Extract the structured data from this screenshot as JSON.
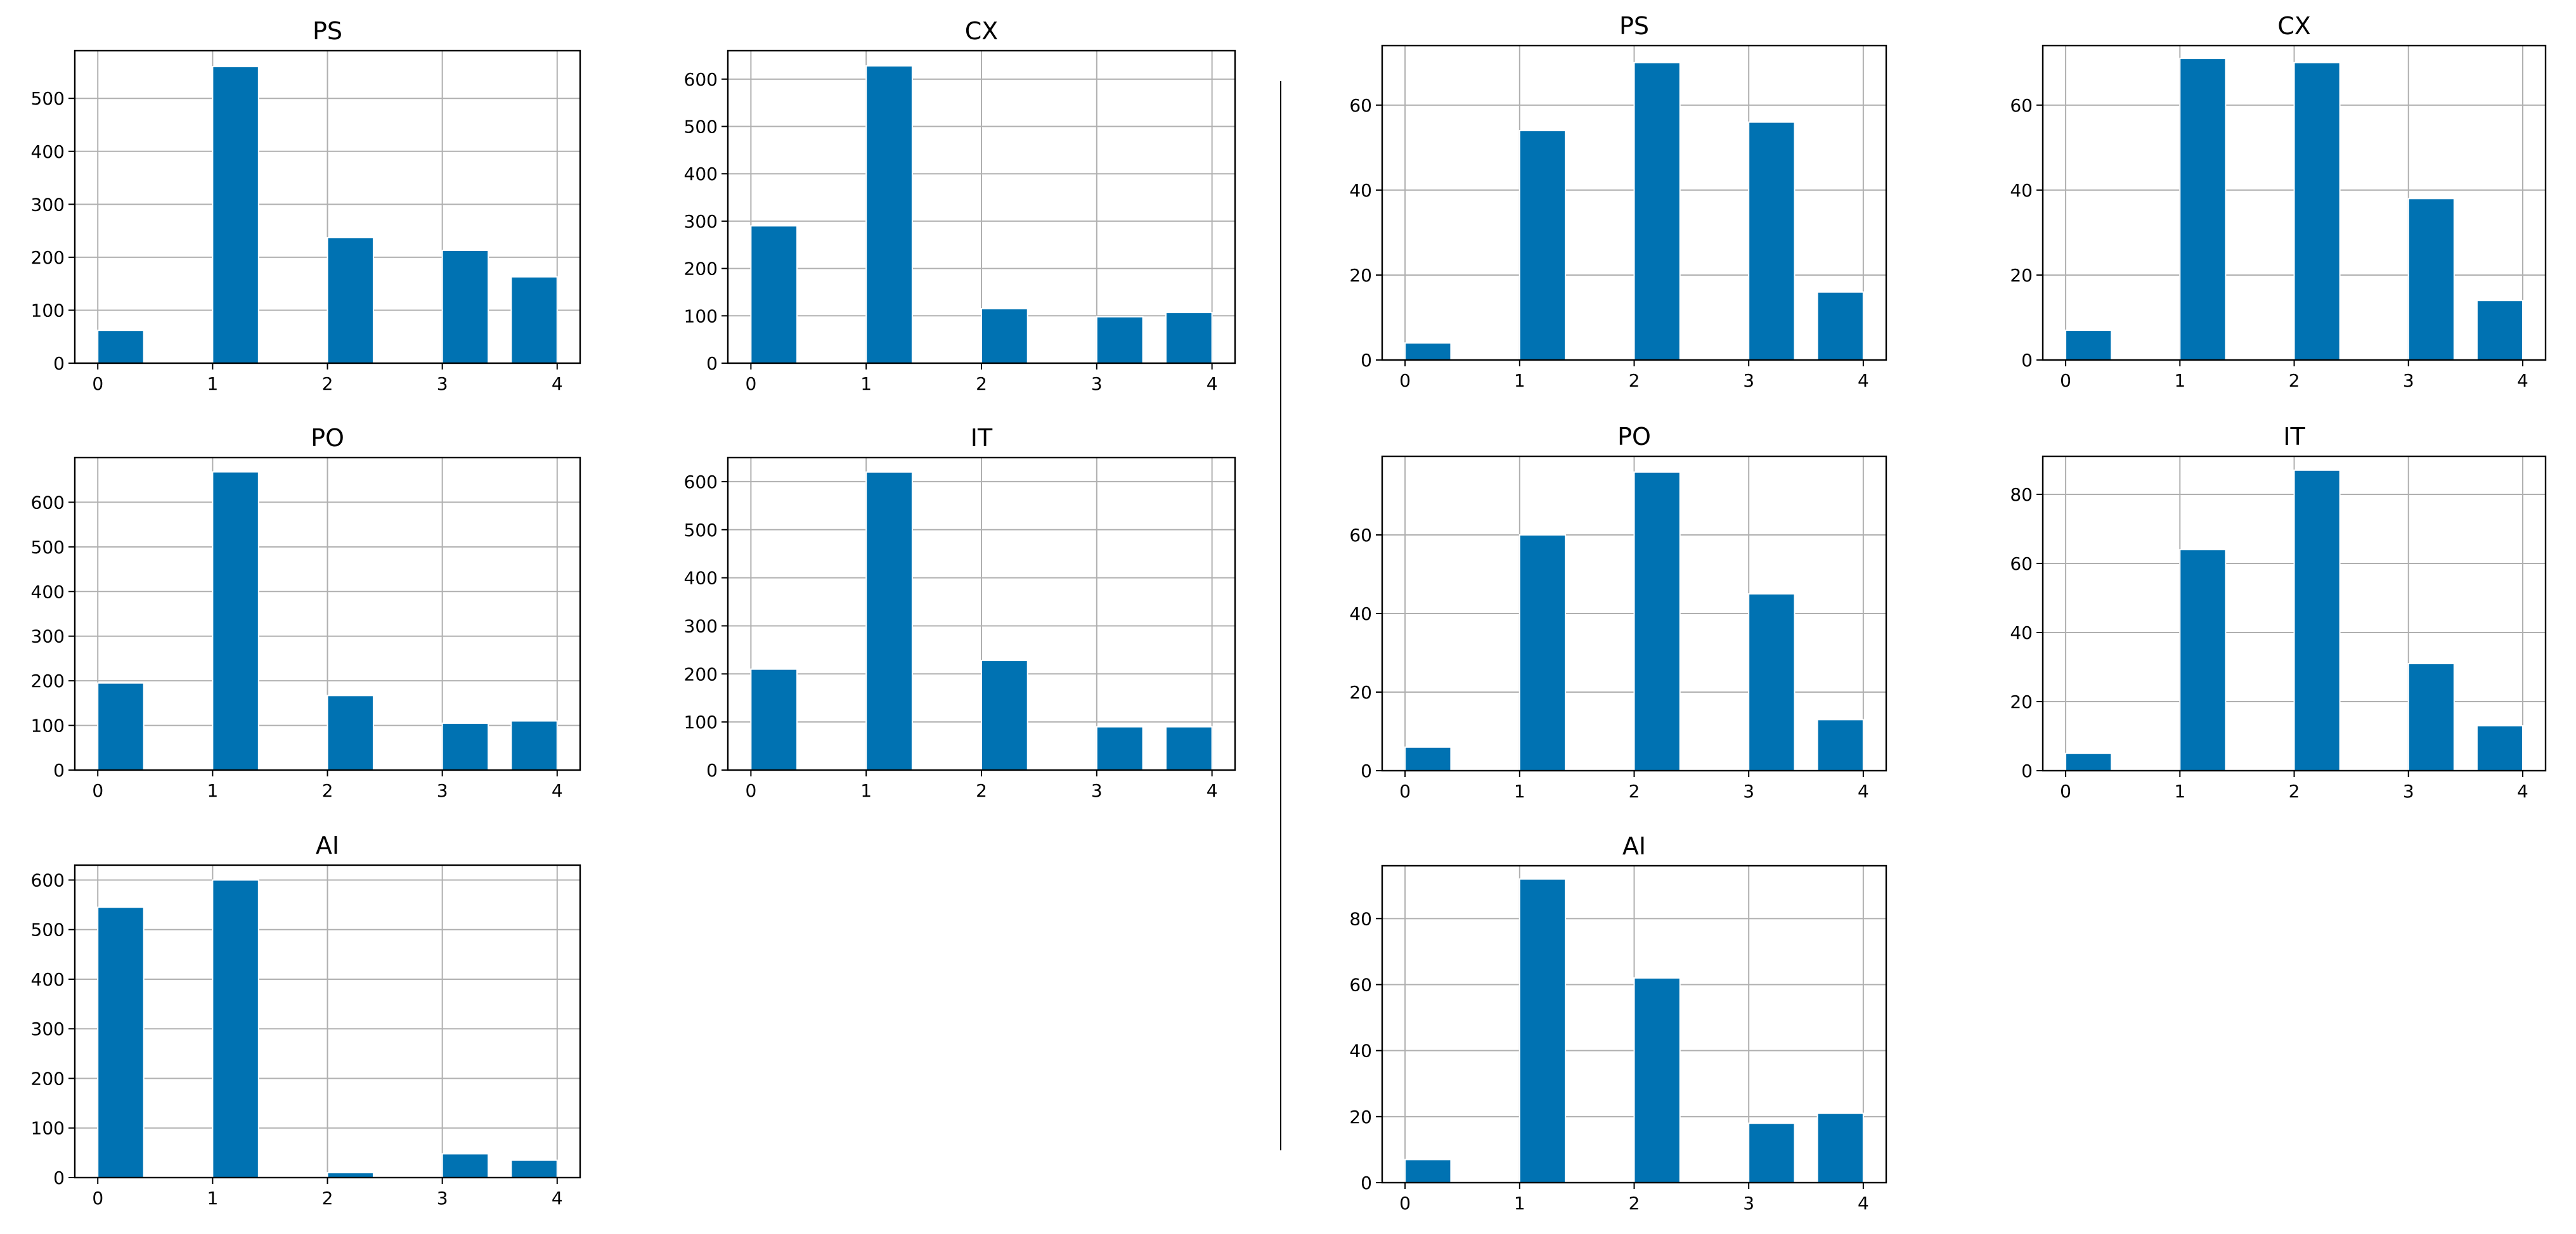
{
  "style": {
    "bar_color": "#0072b2",
    "grid_color": "#b0b0b0",
    "background": "#ffffff"
  },
  "chart_data": [
    {
      "type": "bar",
      "group": "left",
      "title": "PS",
      "categories": [
        "0",
        "1",
        "2",
        "3",
        "4"
      ],
      "values": [
        62,
        560,
        237,
        213,
        163
      ],
      "ylim": [
        0,
        590
      ],
      "yticks": [
        0,
        100,
        200,
        300,
        400,
        500
      ],
      "grid": true
    },
    {
      "type": "bar",
      "group": "left",
      "title": "CX",
      "categories": [
        "0",
        "1",
        "2",
        "3",
        "4"
      ],
      "values": [
        290,
        628,
        115,
        98,
        107
      ],
      "ylim": [
        0,
        660
      ],
      "yticks": [
        0,
        100,
        200,
        300,
        400,
        500,
        600
      ],
      "grid": true
    },
    {
      "type": "bar",
      "group": "left",
      "title": "PO",
      "categories": [
        "0",
        "1",
        "2",
        "3",
        "4"
      ],
      "values": [
        195,
        668,
        167,
        105,
        110
      ],
      "ylim": [
        0,
        700
      ],
      "yticks": [
        0,
        100,
        200,
        300,
        400,
        500,
        600
      ],
      "grid": true
    },
    {
      "type": "bar",
      "group": "left",
      "title": "IT",
      "categories": [
        "0",
        "1",
        "2",
        "3",
        "4"
      ],
      "values": [
        210,
        620,
        228,
        90,
        90
      ],
      "ylim": [
        0,
        650
      ],
      "yticks": [
        0,
        100,
        200,
        300,
        400,
        500,
        600
      ],
      "grid": true
    },
    {
      "type": "bar",
      "group": "left",
      "title": "AI",
      "categories": [
        "0",
        "1",
        "2",
        "3",
        "4"
      ],
      "values": [
        545,
        600,
        10,
        48,
        35
      ],
      "ylim": [
        0,
        630
      ],
      "yticks": [
        0,
        100,
        200,
        300,
        400,
        500,
        600
      ],
      "grid": true
    },
    {
      "type": "bar",
      "group": "right",
      "title": "PS",
      "categories": [
        "0",
        "1",
        "2",
        "3",
        "4"
      ],
      "values": [
        4,
        54,
        70,
        56,
        16
      ],
      "ylim": [
        0,
        74
      ],
      "yticks": [
        0,
        20,
        40,
        60
      ],
      "grid": true
    },
    {
      "type": "bar",
      "group": "right",
      "title": "CX",
      "categories": [
        "0",
        "1",
        "2",
        "3",
        "4"
      ],
      "values": [
        7,
        71,
        70,
        38,
        14
      ],
      "ylim": [
        0,
        74
      ],
      "yticks": [
        0,
        20,
        40,
        60
      ],
      "grid": true
    },
    {
      "type": "bar",
      "group": "right",
      "title": "PO",
      "categories": [
        "0",
        "1",
        "2",
        "3",
        "4"
      ],
      "values": [
        6,
        60,
        76,
        45,
        13
      ],
      "ylim": [
        0,
        80
      ],
      "yticks": [
        0,
        20,
        40,
        60
      ],
      "grid": true
    },
    {
      "type": "bar",
      "group": "right",
      "title": "IT",
      "categories": [
        "0",
        "1",
        "2",
        "3",
        "4"
      ],
      "values": [
        5,
        64,
        87,
        31,
        13
      ],
      "ylim": [
        0,
        91
      ],
      "yticks": [
        0,
        20,
        40,
        60,
        80
      ],
      "grid": true
    },
    {
      "type": "bar",
      "group": "right",
      "title": "AI",
      "categories": [
        "0",
        "1",
        "2",
        "3",
        "4"
      ],
      "values": [
        7,
        92,
        62,
        18,
        21
      ],
      "ylim": [
        0,
        96
      ],
      "yticks": [
        0,
        20,
        40,
        60,
        80
      ],
      "grid": true
    }
  ]
}
